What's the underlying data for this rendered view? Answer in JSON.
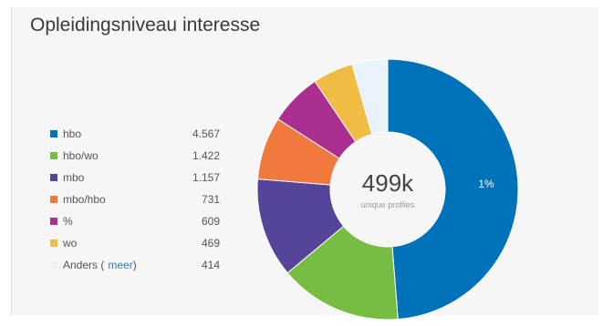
{
  "chart_data": {
    "type": "pie",
    "title": "Opleidingsniveau interesse",
    "center_value": "499k",
    "center_label": "unique profiles",
    "slice_label": "1%",
    "more_link": "meer",
    "legend_placement": "left",
    "categories": [
      "hbo",
      "hbo/wo",
      "mbo",
      "mbo/hbo",
      "%",
      "wo",
      "Anders"
    ],
    "values": [
      4567,
      1422,
      1157,
      731,
      609,
      469,
      414
    ],
    "display_values": [
      "4.567",
      "1.422",
      "1.157",
      "731",
      "609",
      "469",
      "414"
    ],
    "colors": [
      "#0072b9",
      "#78bd43",
      "#56449b",
      "#f07a3d",
      "#ab2f8e",
      "#f0bc43",
      "#e8f3fb"
    ]
  }
}
